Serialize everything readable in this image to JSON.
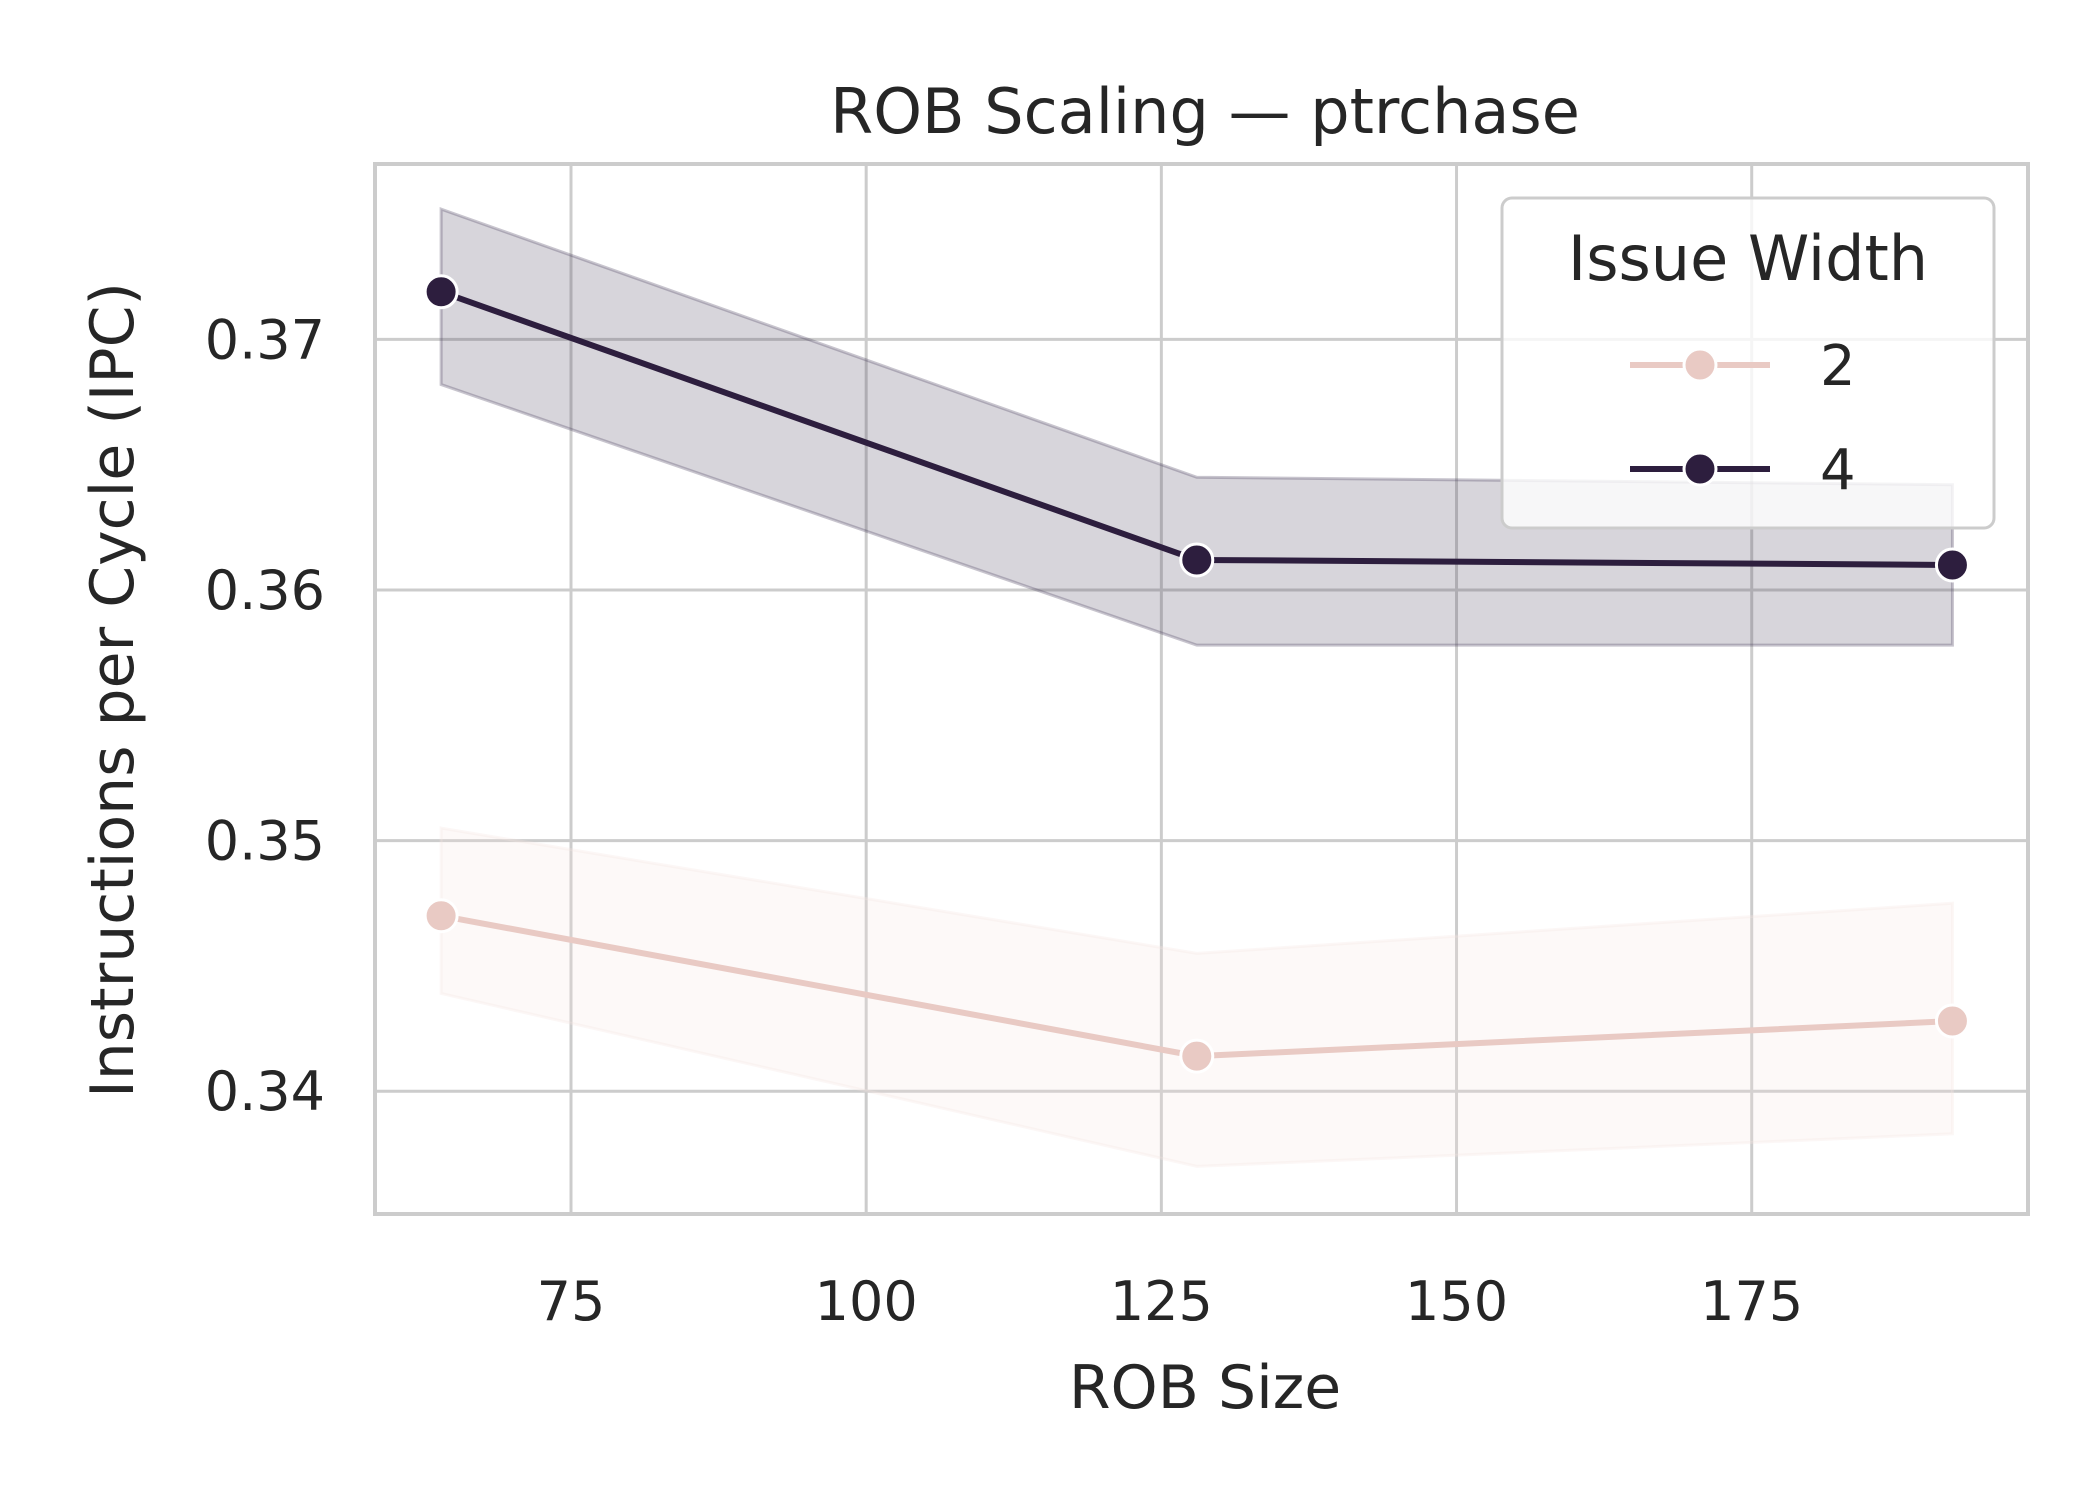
{
  "chart_data": {
    "type": "line",
    "title": "ROB Scaling — ptrchase",
    "xlabel": "ROB Size",
    "ylabel": "Instructions per Cycle (IPC)",
    "xlim": [
      58.4,
      198.4
    ],
    "ylim": [
      0.3351,
      0.377
    ],
    "xticks": [
      75,
      100,
      125,
      150,
      175
    ],
    "yticks": [
      0.34,
      0.35,
      0.36,
      0.37
    ],
    "xtick_labels": [
      "75",
      "100",
      "125",
      "150",
      "175"
    ],
    "ytick_labels": [
      "0.34",
      "0.35",
      "0.36",
      "0.37"
    ],
    "grid": true,
    "legend": {
      "title": "Issue Width",
      "placement": "top-right"
    },
    "x": [
      64,
      128,
      192
    ],
    "series": [
      {
        "name": "2",
        "values": [
          0.347,
          0.3414,
          0.3428
        ],
        "ci_low": [
          0.3439,
          0.337,
          0.3383
        ],
        "ci_high": [
          0.3505,
          0.3455,
          0.3475
        ],
        "color": "#e9cac4",
        "band_color": "#f5e4e0"
      },
      {
        "name": "4",
        "values": [
          0.3719,
          0.3612,
          0.361
        ],
        "ci_low": [
          0.3682,
          0.3578,
          0.3578
        ],
        "ci_high": [
          0.3752,
          0.3645,
          0.3642
        ],
        "color": "#2d1e3e",
        "band_color": "#4a3f5c"
      }
    ]
  }
}
